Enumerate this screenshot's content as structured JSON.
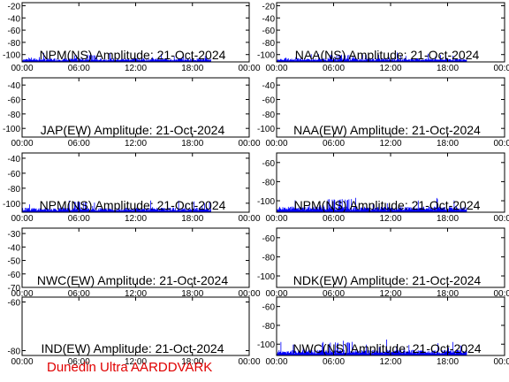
{
  "footer": "Dunedin Ultra AARDDVARK",
  "colors": {
    "trace": "#0000ff",
    "axis": "#000000",
    "footer": "#e00000"
  },
  "chart_data": [
    {
      "type": "area",
      "title": "NPM(NS) Amplitude: 21-Oct-2024",
      "x_ticks": [
        "00:00",
        "06:00",
        "12:00",
        "18:00",
        "00:00"
      ],
      "y_ticks": [
        -100,
        -80,
        -60,
        -40,
        -20
      ],
      "ylim": [
        -112,
        -15
      ],
      "series": [
        {
          "x_range_hours": [
            0,
            20
          ],
          "baseline": -110,
          "peak": -100
        }
      ]
    },
    {
      "type": "area",
      "title": "NAA(NS) Amplitude: 21-Oct-2024",
      "x_ticks": [
        "00:00",
        "06:00",
        "12:00",
        "18:00",
        "00:00"
      ],
      "y_ticks": [
        -100,
        -80,
        -60,
        -40,
        -20
      ],
      "ylim": [
        -112,
        -15
      ],
      "series": [
        {
          "x_range_hours": [
            0,
            20
          ],
          "baseline": -110,
          "peak": -100
        }
      ]
    },
    {
      "type": "area",
      "title": "JAP(EW) Amplitude: 21-Oct-2024",
      "x_ticks": [
        "00:00",
        "06:00",
        "12:00",
        "18:00",
        "00:00"
      ],
      "y_ticks": [
        -100,
        -80,
        -60,
        -40
      ],
      "ylim": [
        -112,
        -30
      ],
      "series": []
    },
    {
      "type": "area",
      "title": "NAA(EW) Amplitude: 21-Oct-2024",
      "x_ticks": [
        "00:00",
        "06:00",
        "12:00",
        "18:00",
        "00:00"
      ],
      "y_ticks": [
        -100,
        -80,
        -60,
        -40
      ],
      "ylim": [
        -112,
        -30
      ],
      "series": []
    },
    {
      "type": "area",
      "title": "NPM(NS) Amplitude: 21-Oct-2024",
      "x_ticks": [
        "00:00",
        "06:00",
        "12:00",
        "18:00",
        "00:00"
      ],
      "y_ticks": [
        -100,
        -80,
        -60,
        -40
      ],
      "ylim": [
        -112,
        -33
      ],
      "series": [
        {
          "x_range_hours": [
            0,
            20
          ],
          "baseline": -110,
          "peak": -98
        }
      ]
    },
    {
      "type": "area",
      "title": "NPM(NS) Amplitude: 21-Oct-2024",
      "x_ticks": [
        "00:00",
        "06:00",
        "12:00",
        "18:00",
        "00:00"
      ],
      "y_ticks": [
        -100,
        -80,
        -60
      ],
      "ylim": [
        -112,
        -50
      ],
      "series": [
        {
          "x_range_hours": [
            0,
            20
          ],
          "baseline": -110,
          "peak": -98
        }
      ]
    },
    {
      "type": "area",
      "title": "NWC(EW) Amplitude: 21-Oct-2024",
      "x_ticks": [
        "00:00",
        "06:00",
        "12:00",
        "18:00",
        "00:00"
      ],
      "y_ticks": [
        -70,
        -60,
        -50,
        -40,
        -30
      ],
      "ylim": [
        -70,
        -26
      ],
      "series": []
    },
    {
      "type": "area",
      "title": "NDK(EW) Amplitude: 21-Oct-2024",
      "x_ticks": [
        "00:00",
        "06:00",
        "12:00",
        "18:00",
        "00:00"
      ],
      "y_ticks": [
        -100,
        -80,
        -60
      ],
      "ylim": [
        -112,
        -50
      ],
      "series": []
    },
    {
      "type": "area",
      "title": "IND(EW) Amplitude: 21-Oct-2024",
      "x_ticks": [
        "00:00",
        "06:00",
        "12:00",
        "18:00",
        "00:00"
      ],
      "y_ticks": [
        -80,
        -60
      ],
      "ylim": [
        -82,
        -58
      ],
      "series": []
    },
    {
      "type": "area",
      "title": "NWC(NS) Amplitude: 21-Oct-2024",
      "x_ticks": [
        "00:00",
        "06:00",
        "12:00",
        "18:00",
        "00:00"
      ],
      "y_ticks": [
        -100,
        -80,
        -60
      ],
      "ylim": [
        -112,
        -50
      ],
      "series": [
        {
          "x_range_hours": [
            0,
            20
          ],
          "baseline": -110,
          "peak": -98
        }
      ]
    }
  ]
}
